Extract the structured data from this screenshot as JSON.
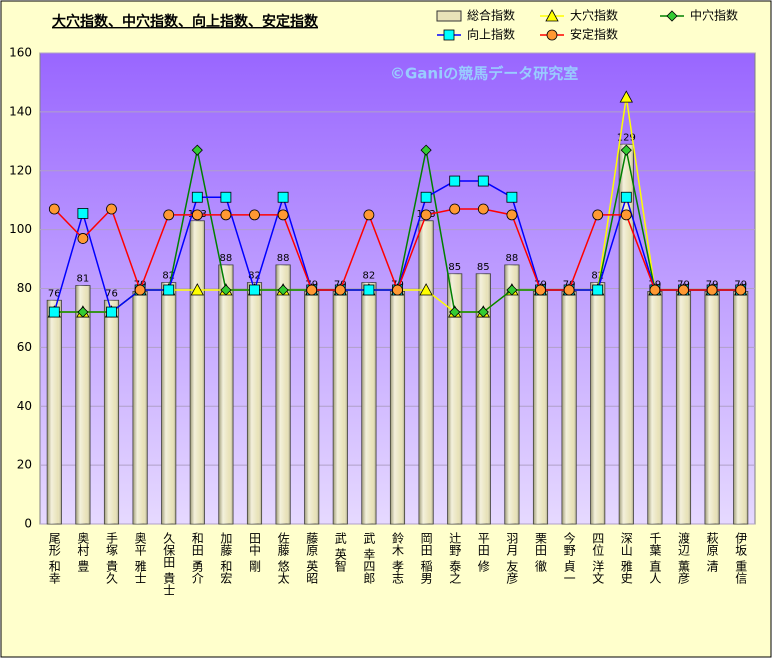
{
  "chart_data": {
    "type": "bar",
    "title": "大穴指数、中穴指数、向上指数、安定指数",
    "watermark": "©Ganiの競馬データ研究室",
    "categories": [
      "尾形 和幸",
      "奥村 豊",
      "手塚 貴久",
      "奥平 雅士",
      "久保田 貴士",
      "和田 勇介",
      "加藤 和宏",
      "田中 剛",
      "佐藤 悠太",
      "藤原 英昭",
      "武 英智",
      "武 幸四郎",
      "鈴木 孝志",
      "岡田 稲男",
      "辻野 泰之",
      "平田 修",
      "羽月 友彦",
      "栗田 徹",
      "今野 貞一",
      "四位 洋文",
      "深山 雅史",
      "千葉 直人",
      "渡辺 薫彦",
      "萩原 清",
      "伊坂 重信"
    ],
    "series": [
      {
        "name": "総合指数",
        "type": "bar",
        "color": "#e8e2b8",
        "values": [
          76,
          81,
          76,
          79,
          82,
          103,
          88,
          82,
          88,
          79,
          79,
          82,
          79,
          103,
          85,
          85,
          88,
          79,
          79,
          82,
          129,
          79,
          79,
          79,
          79
        ]
      },
      {
        "name": "大穴指数",
        "type": "line",
        "marker": "triangle",
        "color": "#ffff00",
        "marker_color": "#ffff00",
        "values": [
          72,
          72,
          72,
          79.5,
          79.5,
          79.5,
          79.5,
          79.5,
          79.5,
          79.5,
          79.5,
          79.5,
          79.5,
          79.5,
          72,
          72,
          79.5,
          79.5,
          79.5,
          79.5,
          145,
          79.5,
          79.5,
          79.5,
          79.5
        ]
      },
      {
        "name": "中穴指数",
        "type": "line",
        "marker": "diamond",
        "color": "#008000",
        "marker_color": "#33cc33",
        "values": [
          72,
          72,
          72,
          79.5,
          79.5,
          127,
          79.5,
          79.5,
          79.5,
          79.5,
          79.5,
          79.5,
          79.5,
          127,
          72,
          72,
          79.5,
          79.5,
          79.5,
          79.5,
          127,
          79.5,
          79.5,
          79.5,
          79.5
        ]
      },
      {
        "name": "向上指数",
        "type": "line",
        "marker": "square",
        "color": "#0000ff",
        "marker_color": "#00ffff",
        "values": [
          72,
          105.5,
          72,
          79.5,
          79.5,
          111,
          111,
          79.5,
          111,
          79.5,
          79.5,
          79.5,
          79.5,
          111,
          116.5,
          116.5,
          111,
          79.5,
          79.5,
          79.5,
          111,
          79.5,
          79.5,
          79.5,
          79.5
        ]
      },
      {
        "name": "安定指数",
        "type": "line",
        "marker": "circle",
        "color": "#ff0000",
        "marker_color": "#ff9933",
        "values": [
          107,
          97,
          107,
          79.5,
          105,
          105,
          105,
          105,
          105,
          79.5,
          79.5,
          105,
          79.5,
          105,
          107,
          107,
          105,
          79.5,
          79.5,
          105,
          105,
          79.5,
          79.5,
          79.5,
          79.5
        ]
      }
    ],
    "ylim": [
      0,
      160
    ],
    "yticks": [
      0,
      20,
      40,
      60,
      80,
      100,
      120,
      140,
      160
    ],
    "grid": true
  }
}
